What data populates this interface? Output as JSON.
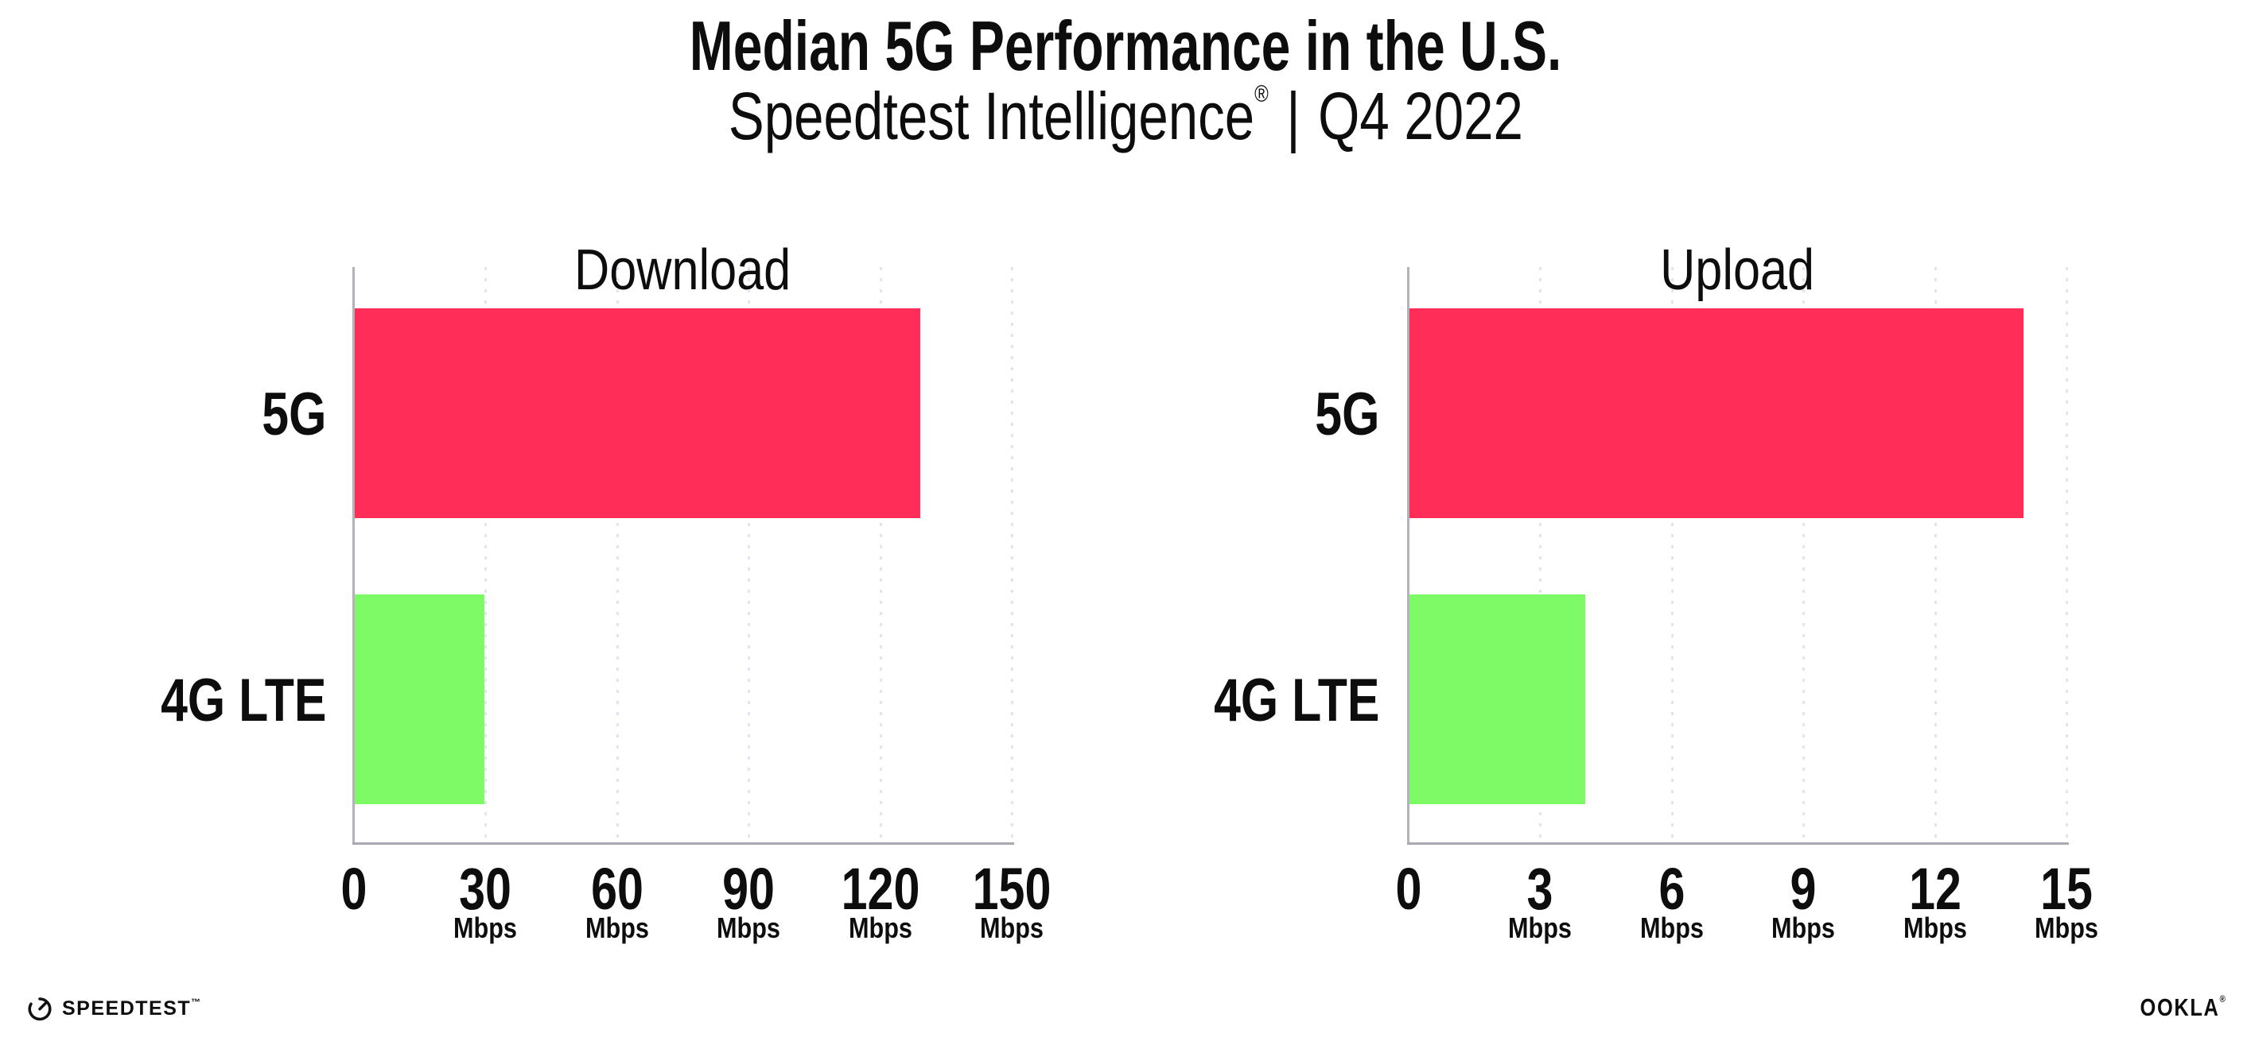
{
  "title": "Median 5G Performance in the U.S.",
  "subtitle": {
    "brand": "Speedtest Intelligence",
    "reg": "®",
    "separator": "|",
    "period": "Q4 2022"
  },
  "chart_data": [
    {
      "type": "bar",
      "orientation": "horizontal",
      "title": "Download",
      "categories": [
        "5G",
        "4G LTE"
      ],
      "values": [
        129,
        29.5
      ],
      "unit": "Mbps",
      "xlim": [
        0,
        150
      ],
      "xticks": [
        0,
        30,
        60,
        90,
        120,
        150
      ],
      "tick_unit": "Mbps",
      "grid": "dotted vertical gridlines at each tick",
      "bar_colors": [
        "#ff2d57",
        "#7efa66"
      ]
    },
    {
      "type": "bar",
      "orientation": "horizontal",
      "title": "Upload",
      "categories": [
        "5G",
        "4G LTE"
      ],
      "values": [
        14,
        4
      ],
      "unit": "Mbps",
      "xlim": [
        0,
        15
      ],
      "xticks": [
        0,
        3,
        6,
        9,
        12,
        15
      ],
      "tick_unit": "Mbps",
      "grid": "dotted vertical gridlines at each tick",
      "bar_colors": [
        "#ff2d57",
        "#7efa66"
      ]
    }
  ],
  "footer": {
    "speedtest_wordmark": "SPEEDTEST",
    "speedtest_tm": "™",
    "ookla_wordmark": "OOKLA",
    "ookla_reg": "®"
  },
  "colors": {
    "bar_5g": "#ff2d57",
    "bar_4g": "#7efa66",
    "axis": "#a9a9b3",
    "gridline": "#e4e4f0",
    "text": "#0d0d0d",
    "background": "#ffffff"
  }
}
